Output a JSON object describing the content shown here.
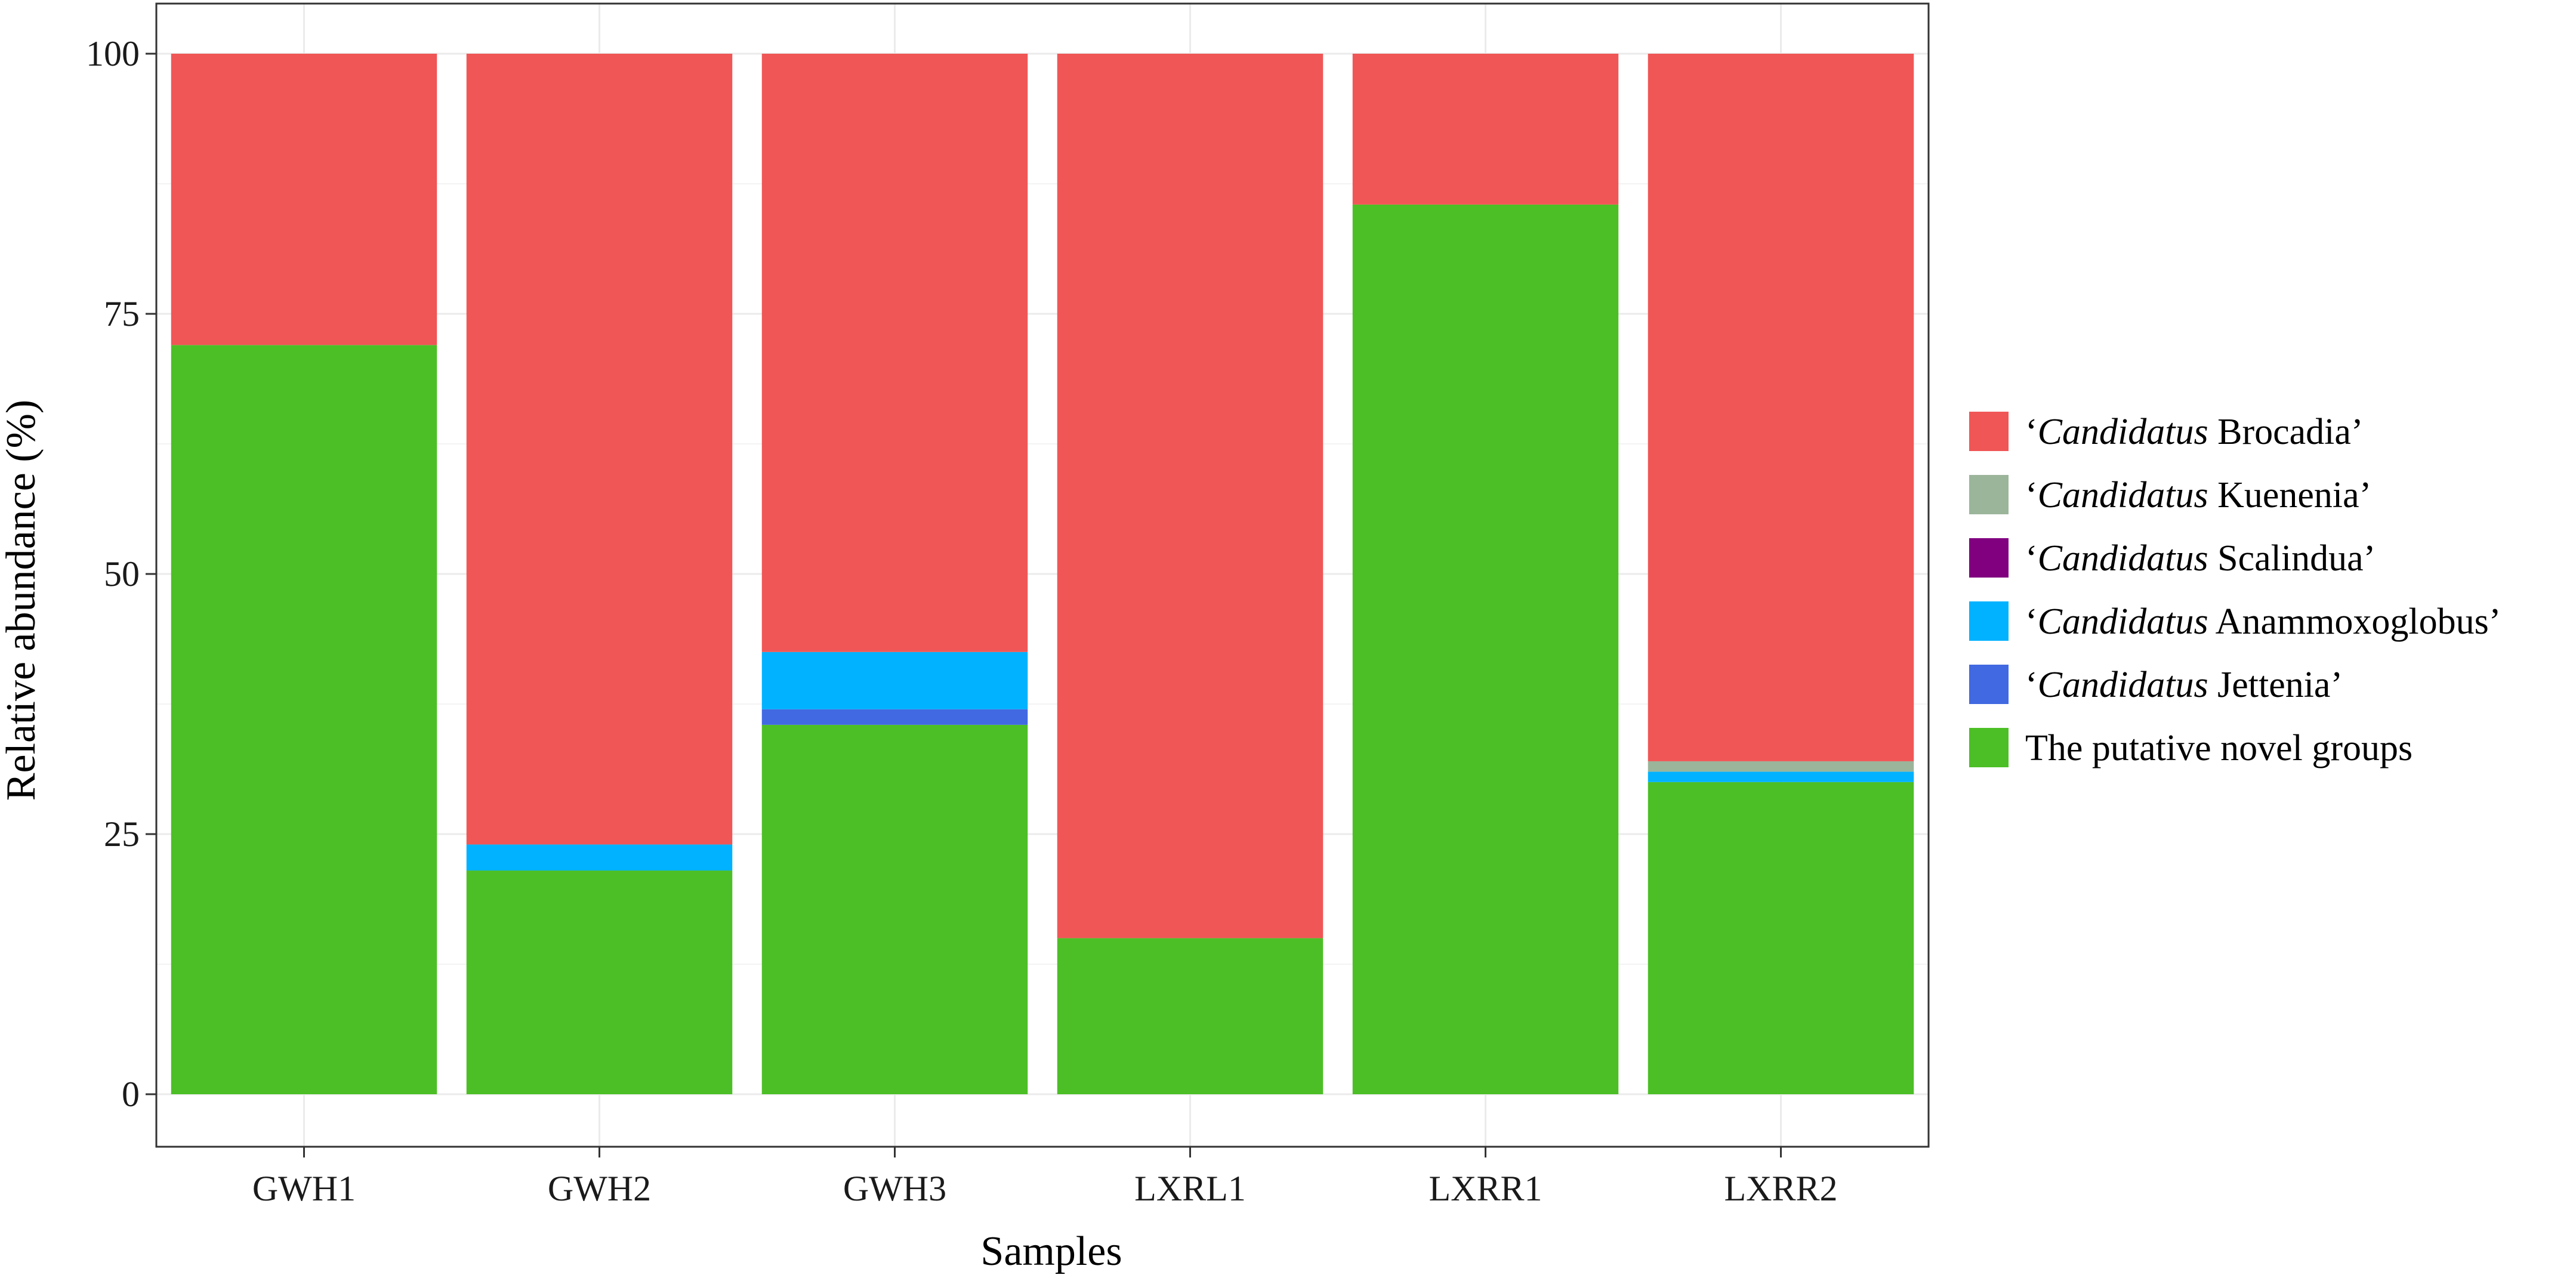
{
  "chart_data": {
    "type": "bar",
    "stacked": true,
    "xlabel": "Samples",
    "ylabel": "Relative abundance (%)",
    "ylim": [
      0,
      100
    ],
    "yticks": [
      0,
      25,
      50,
      75,
      100
    ],
    "grid": true,
    "legend_position": "right",
    "categories": [
      "GWH1",
      "GWH2",
      "GWH3",
      "LXRL1",
      "LXRR1",
      "LXRR2"
    ],
    "series": [
      {
        "name": "The putative novel groups",
        "name_prefix": "",
        "name_italic": "",
        "name_rest": "The putative novel groups",
        "color": "#4cbf26",
        "values": [
          72,
          21.5,
          35.5,
          15,
          85.5,
          30
        ]
      },
      {
        "name": "‘Candidatus Jettenia’",
        "name_prefix": "‘",
        "name_italic": "Candidatus",
        "name_rest": " Jettenia’",
        "color": "#4169e1",
        "values": [
          0,
          0,
          1.5,
          0,
          0,
          0
        ]
      },
      {
        "name": "‘Candidatus Anammoxoglobus’",
        "name_prefix": "‘",
        "name_italic": "Candidatus",
        "name_rest": " Anammoxoglobus’",
        "color": "#00b2ff",
        "values": [
          0,
          2.5,
          5.5,
          0,
          0,
          1
        ]
      },
      {
        "name": "‘Candidatus Scalindua’",
        "name_prefix": "‘",
        "name_italic": "Candidatus",
        "name_rest": " Scalindua’",
        "color": "#800080",
        "values": [
          0,
          0,
          0,
          0,
          0,
          0
        ]
      },
      {
        "name": "‘Candidatus Kuenenia’",
        "name_prefix": "‘",
        "name_italic": "Candidatus",
        "name_rest": " Kuenenia’",
        "color": "#9bb59b",
        "values": [
          0,
          0,
          0,
          0,
          0,
          1
        ]
      },
      {
        "name": "‘Candidatus Brocadia’",
        "name_prefix": "‘",
        "name_italic": "Candidatus",
        "name_rest": " Brocadia’",
        "color": "#f05656",
        "values": [
          28,
          76,
          57.5,
          85,
          14.5,
          68
        ]
      }
    ],
    "legend_order": [
      5,
      4,
      3,
      2,
      1,
      0
    ]
  }
}
